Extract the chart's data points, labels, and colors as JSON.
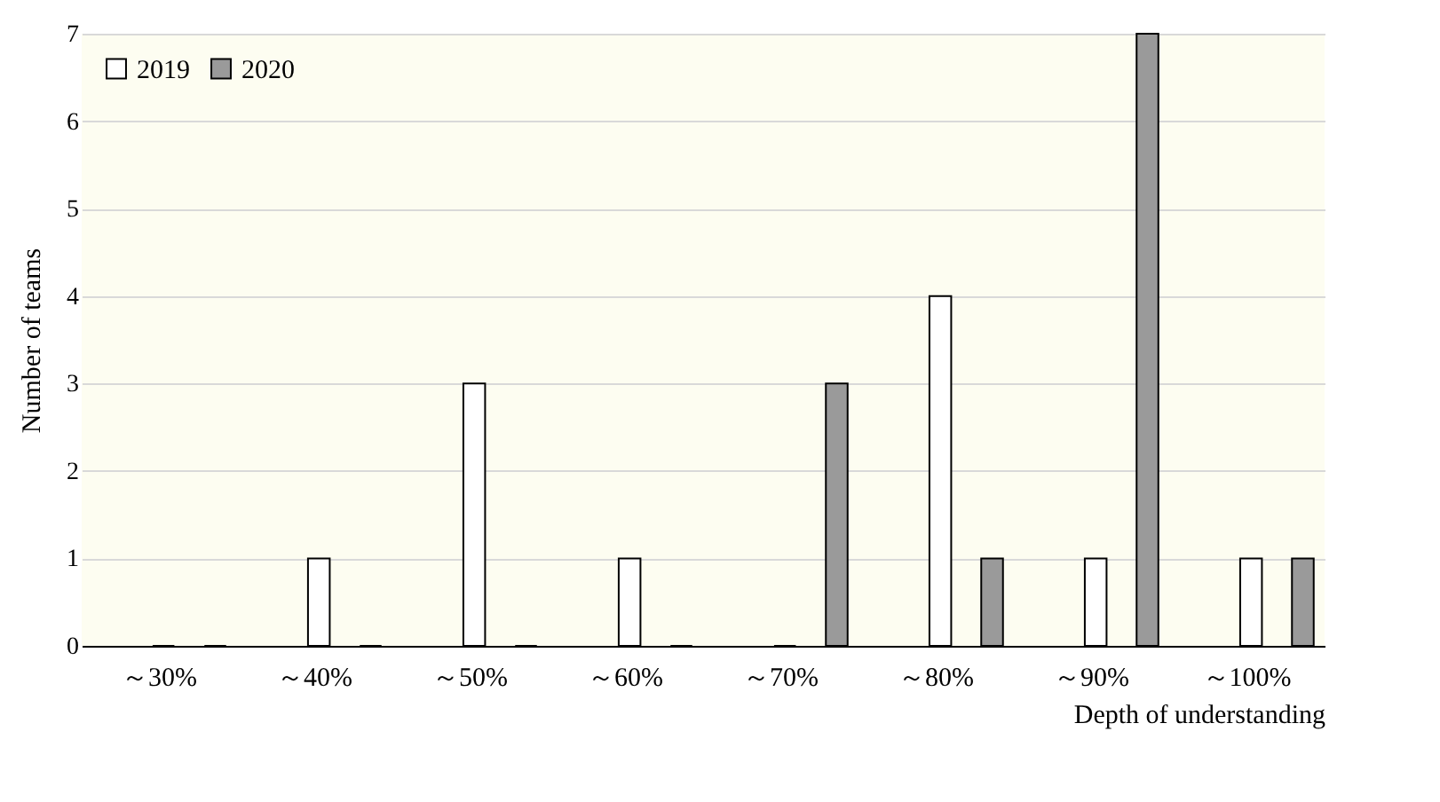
{
  "chart_data": {
    "type": "bar",
    "xlabel": "Depth of understanding",
    "ylabel": "Number of teams",
    "categories": [
      "～30%",
      "～40%",
      "～50%",
      "～60%",
      "～70%",
      "～80%",
      "～90%",
      "～100%"
    ],
    "series": [
      {
        "name": "2019",
        "color": "#ffffff",
        "values": [
          0,
          1,
          3,
          1,
          0,
          4,
          1,
          1
        ]
      },
      {
        "name": "2020",
        "color": "#9a9a9a",
        "values": [
          0,
          0,
          0,
          0,
          3,
          1,
          7,
          1
        ]
      }
    ],
    "ylim": [
      0,
      7
    ],
    "yticks": [
      0,
      1,
      2,
      3,
      4,
      5,
      6,
      7
    ],
    "grid": "y",
    "legend": "top left"
  }
}
